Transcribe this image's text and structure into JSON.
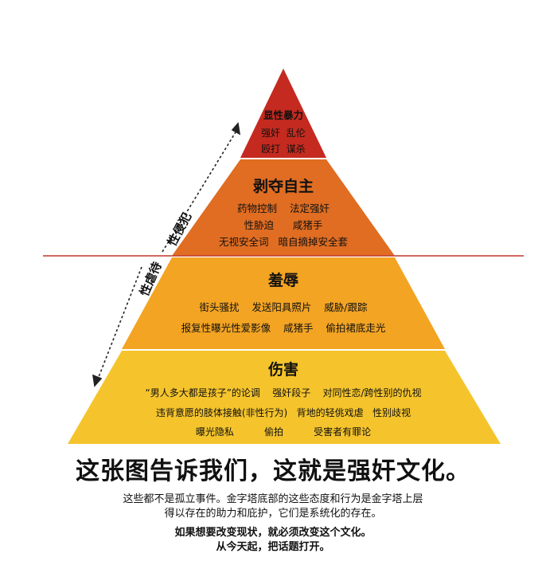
{
  "pyramid": {
    "tiers": [
      {
        "title": "显性暴力",
        "lines": [
          "强奸  乱伦",
          "殴打  谋杀"
        ],
        "color": "#c42a1f"
      },
      {
        "title": "剥夺自主",
        "lines": [
          "药物控制    法定强奸",
          "性胁迫      咸猪手",
          "无视安全词   暗自摘掉安全套"
        ],
        "color": "#e06d22"
      },
      {
        "title": "羞辱",
        "lines": [
          "街头骚扰    发送阳具照片    威胁/跟踪",
          "报复性曝光性爱影像    咸猪手    偷拍裙底走光"
        ],
        "color": "#f3a423"
      },
      {
        "title": "伤害",
        "lines": [
          "“男人多大都是孩子”的论调    强奸段子    对同性恋/跨性别的仇视",
          "违背意愿的肢体接触(非性行为)   背地的轻佻戏虐   性别歧视",
          "曝光隐私          偷拍          受害者有罪论"
        ],
        "color": "#f5c42c"
      }
    ],
    "divider_color": "#c0392b",
    "side_labels": {
      "upper": "性侵犯",
      "lower": "性虐待"
    }
  },
  "footer": {
    "headline": "这张图告诉我们，这就是强奸文化。",
    "para1_line1": "这些都不是孤立事件。金字塔底部的这些态度和行为是金字塔上层",
    "para1_line2": "得以存在的助力和庇护，它们是系统化的存在。",
    "para2_line1": "如果想要改变现状，就必须改变这个文化。",
    "para2_line2": "从今天起，把话题打开。"
  }
}
